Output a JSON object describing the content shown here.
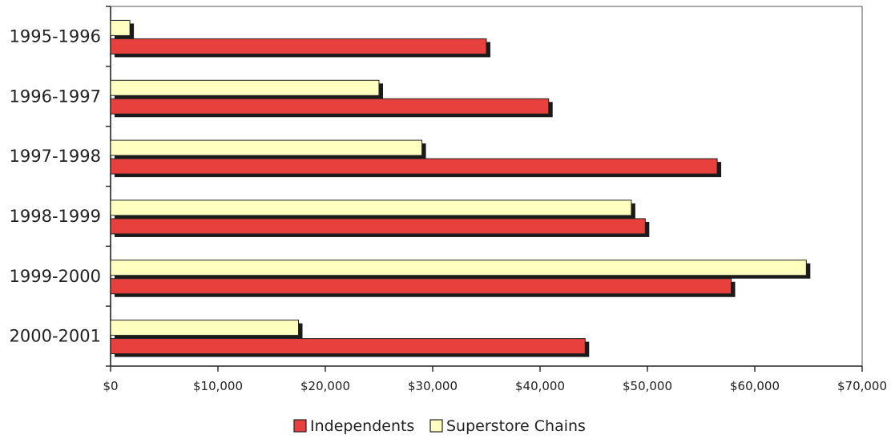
{
  "chart_data": {
    "type": "bar",
    "orientation": "horizontal",
    "categories": [
      "1995-1996",
      "1996-1997",
      "1997-1998",
      "1998-1999",
      "1999-2000",
      "2000-2001"
    ],
    "series": [
      {
        "name": "Superstore Chains",
        "color": "#ffffc0",
        "values": [
          1800,
          25000,
          29000,
          48500,
          64800,
          17500
        ]
      },
      {
        "name": "Independents",
        "color": "#e8403c",
        "values": [
          35000,
          40800,
          56500,
          49800,
          57800,
          44200
        ]
      }
    ],
    "x_ticks": [
      "$0",
      "$10,000",
      "$20,000",
      "$30,000",
      "$40,000",
      "$50,000",
      "$60,000",
      "$70,000"
    ],
    "xlim": [
      0,
      70000
    ],
    "legend": {
      "position": "bottom",
      "items": [
        {
          "label": "Independents",
          "color": "#e8403c"
        },
        {
          "label": "Superstore Chains",
          "color": "#ffffc0"
        }
      ]
    },
    "grid": false,
    "title": "",
    "xlabel": "",
    "ylabel": ""
  }
}
